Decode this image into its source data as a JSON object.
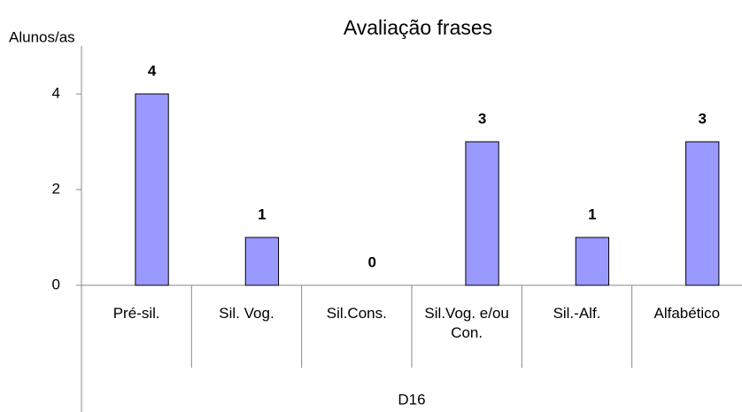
{
  "chart_data": {
    "type": "bar",
    "title": "Avaliação frases",
    "y_label": "Alunos/as",
    "x_label": "D16",
    "categories": [
      "Pré-sil.",
      "Sil. Vog.",
      "Sil.Cons.",
      "Sil.Vog. e/ou Con.",
      "Sil.-Alf.",
      "Alfabético"
    ],
    "values": [
      4,
      1,
      0,
      3,
      1,
      3
    ],
    "color": "#9999ff",
    "ylim": [
      0,
      5
    ],
    "yticks": [
      0,
      2,
      4
    ]
  }
}
